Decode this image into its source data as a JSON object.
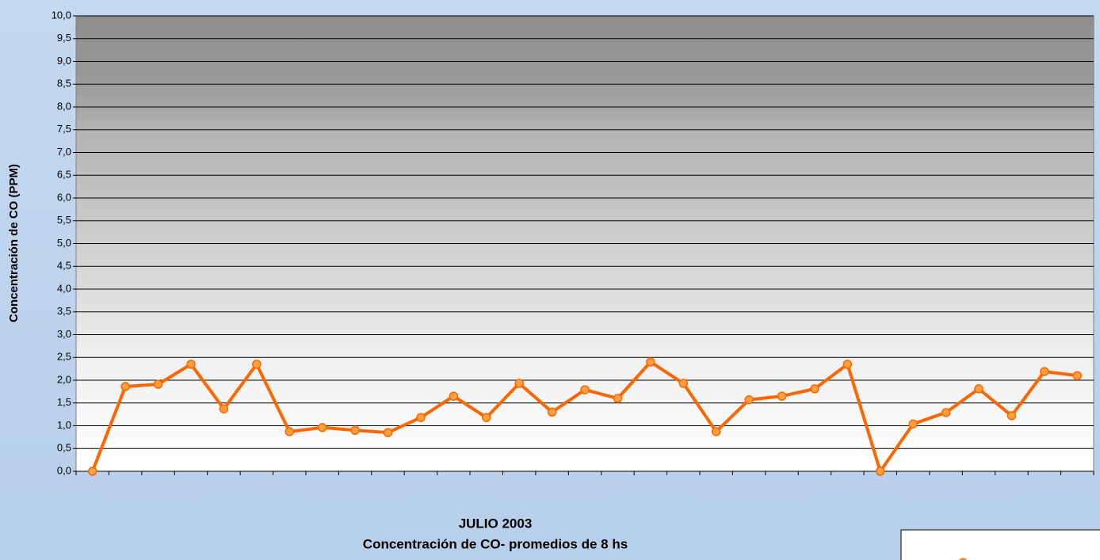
{
  "chart_data": {
    "type": "line",
    "title": "JULIO 2003",
    "subtitle": "Concentración de CO- promedios de 8 hs",
    "y_label": "Concentración de CO (PPM)",
    "categories": [
      null,
      null,
      null,
      null,
      null,
      null,
      null,
      null,
      null,
      null,
      null,
      null,
      null,
      null,
      null,
      null,
      null,
      null,
      null,
      null,
      null,
      null,
      null,
      null,
      null,
      null,
      null,
      null,
      null,
      null,
      null
    ],
    "series": [
      {
        "color": "#ff6600",
        "marker_color": "#ffa040",
        "values": [
          0,
          1.86,
          1.91,
          2.35,
          1.37,
          2.35,
          0.87,
          0.96,
          0.9,
          0.85,
          1.18,
          1.65,
          1.18,
          1.93,
          1.3,
          1.79,
          1.6,
          2.4,
          1.93,
          0.87,
          1.57,
          1.65,
          1.81,
          2.35,
          0,
          1.04,
          1.29,
          1.81,
          1.22,
          2.19,
          2.1
        ]
      }
    ],
    "ylim": [
      0,
      10
    ],
    "yticks": [
      {
        "value": 0,
        "label": "0,0"
      },
      {
        "value": 0.5,
        "label": "0,5"
      },
      {
        "value": 1,
        "label": "1,0"
      },
      {
        "value": 1.5,
        "label": "1,5"
      },
      {
        "value": 2,
        "label": "2,0"
      },
      {
        "value": 2.5,
        "label": "2,5"
      },
      {
        "value": 3,
        "label": "3,0"
      },
      {
        "value": 3.5,
        "label": "3,5"
      },
      {
        "value": 4,
        "label": "4,0"
      },
      {
        "value": 4.5,
        "label": "4,5"
      },
      {
        "value": 5,
        "label": "5,0"
      },
      {
        "value": 5.5,
        "label": "5,5"
      },
      {
        "value": 6,
        "label": "6,0"
      },
      {
        "value": 6.5,
        "label": "6,5"
      },
      {
        "value": 7,
        "label": "7,0"
      },
      {
        "value": 7.5,
        "label": "7,5"
      },
      {
        "value": 8,
        "label": "8,0"
      },
      {
        "value": 8.5,
        "label": "8,5"
      },
      {
        "value": 9,
        "label": "9,0"
      },
      {
        "value": 9.5,
        "label": "9,5"
      },
      {
        "value": 10,
        "label": "10,0"
      }
    ],
    "grid": true
  }
}
